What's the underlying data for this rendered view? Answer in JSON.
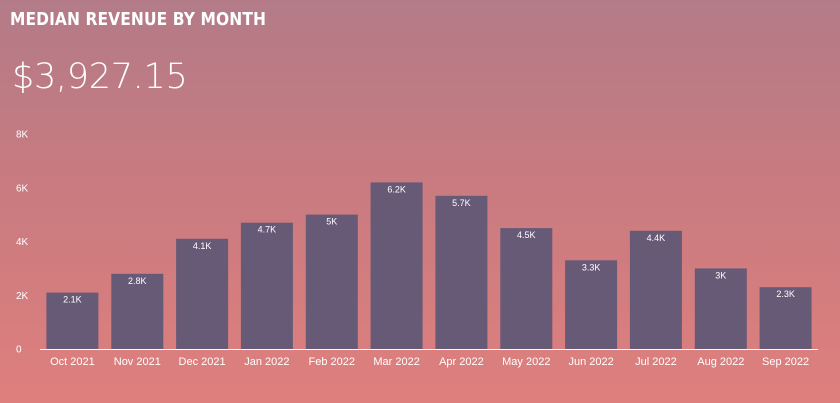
{
  "header": {
    "title": "MEDIAN REVENUE BY MONTH",
    "kpi_value": "$3,927.15"
  },
  "colors": {
    "bar": "#675a77",
    "axis": "#ffffff",
    "text": "#ffffff"
  },
  "chart_data": {
    "type": "bar",
    "title": "MEDIAN REVENUE BY MONTH",
    "xlabel": "",
    "ylabel": "",
    "ylim": [
      0,
      8000
    ],
    "grid": false,
    "yticks": [
      0,
      2000,
      4000,
      6000,
      8000
    ],
    "ytick_labels": [
      "0",
      "2K",
      "4K",
      "6K",
      "8K"
    ],
    "categories": [
      "Oct 2021",
      "Nov 2021",
      "Dec 2021",
      "Jan 2022",
      "Feb 2022",
      "Mar 2022",
      "Apr 2022",
      "May 2022",
      "Jun 2022",
      "Jul 2022",
      "Aug 2022",
      "Sep 2022"
    ],
    "values": [
      2100,
      2800,
      4100,
      4700,
      5000,
      6200,
      5700,
      4500,
      3300,
      4400,
      3000,
      2300
    ],
    "data_labels": [
      "2.1K",
      "2.8K",
      "4.1K",
      "4.7K",
      "5K",
      "6.2K",
      "5.7K",
      "4.5K",
      "3.3K",
      "4.4K",
      "3K",
      "2.3K"
    ]
  }
}
